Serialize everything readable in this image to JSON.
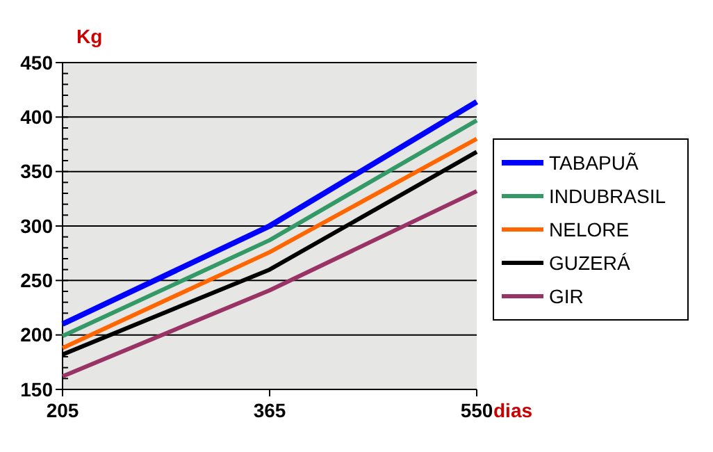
{
  "chart_data": {
    "type": "line",
    "ylabel": "Kg",
    "xlabel": "dias",
    "categories": [
      "205",
      "365",
      "550"
    ],
    "ylim": [
      150,
      450
    ],
    "yticks": [
      150,
      200,
      250,
      300,
      350,
      400,
      450
    ],
    "grid": "y",
    "legend": "right",
    "marker": "none",
    "series": [
      {
        "name": "TABAPUÃ",
        "color": "#0000ff",
        "values": [
          210,
          300,
          414
        ]
      },
      {
        "name": "INDUBRASIL",
        "color": "#339966",
        "values": [
          199,
          287,
          397
        ]
      },
      {
        "name": "NELORE",
        "color": "#ff6600",
        "values": [
          188,
          276,
          380
        ]
      },
      {
        "name": "GUZERÁ",
        "color": "#000000",
        "values": [
          182,
          260,
          368
        ]
      },
      {
        "name": "GIR",
        "color": "#993366",
        "values": [
          162,
          241,
          332
        ]
      }
    ]
  }
}
